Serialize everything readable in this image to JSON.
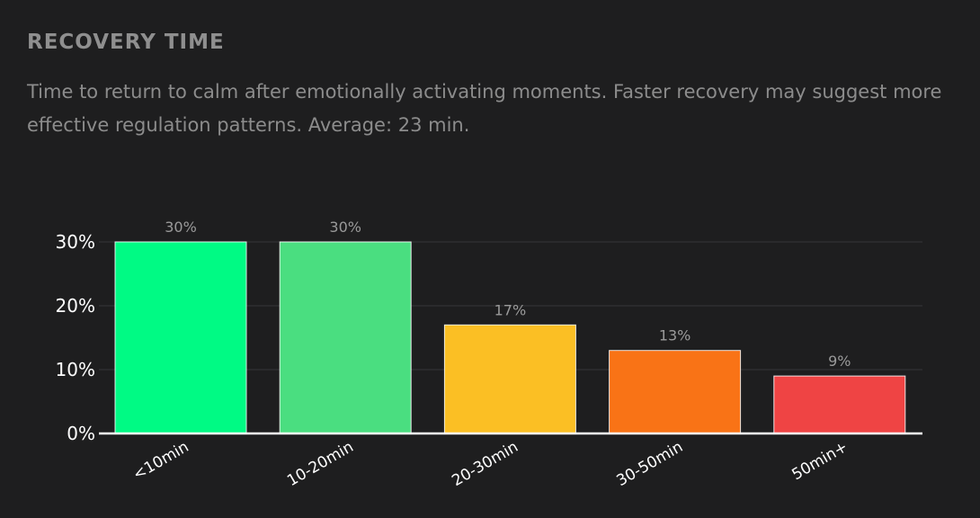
{
  "header": {
    "title": "RECOVERY TIME",
    "subtitle": "Time to return to calm after emotionally activating moments. Faster recovery may suggest more effective regulation patterns. Average: 23 min."
  },
  "chart_data": {
    "type": "bar",
    "categories": [
      "<10min",
      "10-20min",
      "20-30min",
      "30-50min",
      "50min+"
    ],
    "values": [
      30,
      30,
      17,
      13,
      9
    ],
    "data_labels": [
      "30%",
      "30%",
      "17%",
      "13%",
      "9%"
    ],
    "colors": [
      "#00fa84",
      "#4ade80",
      "#fbbf24",
      "#f97316",
      "#ef4444"
    ],
    "y_ticks": [
      0,
      10,
      20,
      30
    ],
    "y_tick_labels": [
      "0%",
      "10%",
      "20%",
      "30%"
    ],
    "ylim": [
      0,
      30
    ],
    "grid": true,
    "title": "",
    "xlabel": "",
    "ylabel": ""
  }
}
